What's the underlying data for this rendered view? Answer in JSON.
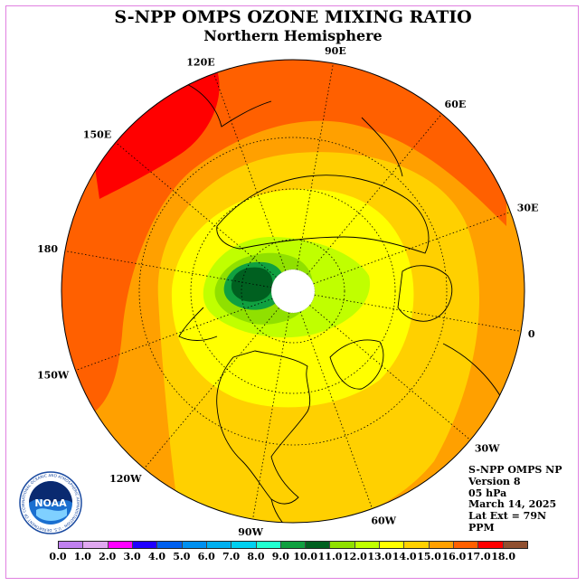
{
  "title": "S-NPP OMPS OZONE MIXING RATIO",
  "subtitle": "Northern Hemisphere",
  "longitude_labels": [
    {
      "text": "90E",
      "lon": 90
    },
    {
      "text": "60E",
      "lon": 60
    },
    {
      "text": "30E",
      "lon": 30
    },
    {
      "text": "0",
      "lon": 0
    },
    {
      "text": "30W",
      "lon": -30
    },
    {
      "text": "60W",
      "lon": -60
    },
    {
      "text": "90W",
      "lon": -90
    },
    {
      "text": "120W",
      "lon": -120
    },
    {
      "text": "150W",
      "lon": -150
    },
    {
      "text": "180",
      "lon": 180
    },
    {
      "text": "150E",
      "lon": 150
    },
    {
      "text": "120E",
      "lon": 120
    }
  ],
  "info": {
    "line1": "S-NPP OMPS NP",
    "line2": "Version 8",
    "line3": "05 hPa",
    "line4": "March 14, 2025",
    "line5": "Lat Ext = 79N",
    "line6": "PPM"
  },
  "colorbar": {
    "colors": [
      "#c080f0",
      "#e0a8f0",
      "#ff00ff",
      "#2000ff",
      "#0060f0",
      "#0090f0",
      "#00b0f0",
      "#00d0f0",
      "#20ffd0",
      "#10a040",
      "#006020",
      "#90e000",
      "#c0ff00",
      "#ffff00",
      "#ffd000",
      "#ffa000",
      "#ff6000",
      "#ff0000",
      "#905030"
    ],
    "ticks": [
      "0.0",
      "1.0",
      "2.0",
      "3.0",
      "4.0",
      "5.0",
      "6.0",
      "7.0",
      "8.0",
      "9.0",
      "10.0",
      "11.0",
      "12.0",
      "13.0",
      "14.0",
      "15.0",
      "16.0",
      "17.0",
      "18.0"
    ],
    "units": "PPM"
  },
  "logo": {
    "text": "NOAA",
    "ring_text": "NATIONAL OCEANIC AND ATMOSPHERIC ADMINISTRATION · U.S. DEPARTMENT OF COMMERCE"
  },
  "map_colors": {
    "red": "#ff0000",
    "dark_orange": "#ff6000",
    "orange": "#ffa000",
    "light_orange": "#ffd000",
    "yellow": "#ffff00",
    "yellow_green": "#c0ff00",
    "green": "#90e000",
    "dark_green": "#006020",
    "mid_green": "#10a040",
    "pole_fill": "#ffffff"
  }
}
